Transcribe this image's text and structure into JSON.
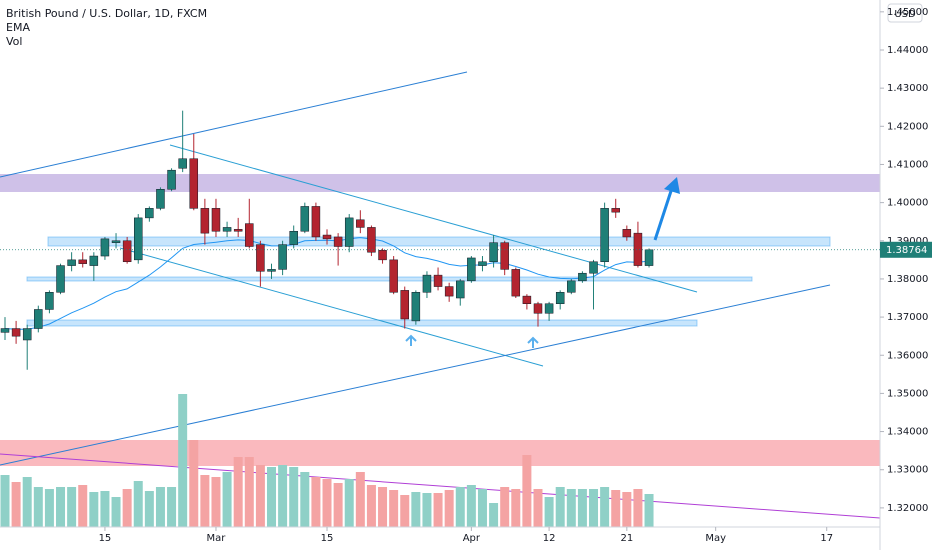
{
  "chart_data": {
    "type": "candlestick",
    "title": "British Pound / U.S. Dollar, 1D, FXCM",
    "indicators": [
      "EMA",
      "Vol"
    ],
    "currency": "USD",
    "last_price": 1.38764,
    "up_color": "#1f7f77",
    "down_color": "#b3242f",
    "volume_up_color": "#8fd0c7",
    "volume_down_color": "#f4a3a3",
    "ema_color": "#2196f3",
    "open": [
      1.366,
      1.367,
      1.364,
      1.367,
      1.372,
      1.3765,
      1.3835,
      1.385,
      1.3835,
      1.386,
      1.3895,
      1.39,
      1.385,
      1.396,
      1.3985,
      1.4035,
      1.409,
      1.4115,
      1.3985,
      1.3985,
      1.3925,
      1.393,
      1.3945,
      1.389,
      1.382,
      1.3825,
      1.389,
      1.3925,
      1.399,
      1.3915,
      1.391,
      1.3885,
      1.3955,
      1.3935,
      1.3875,
      1.385,
      1.377,
      1.369,
      1.3765,
      1.381,
      1.378,
      1.375,
      1.3795,
      1.3835,
      1.3845,
      1.3895,
      1.3825,
      1.3755,
      1.3735,
      1.371,
      1.3735,
      1.3765,
      1.3795,
      1.3815,
      1.3845,
      1.3985,
      1.393,
      1.392,
      1.3835
    ],
    "high": [
      1.37,
      1.369,
      1.368,
      1.373,
      1.377,
      1.384,
      1.387,
      1.387,
      1.387,
      1.391,
      1.392,
      1.391,
      1.397,
      1.399,
      1.404,
      1.409,
      1.4241,
      1.418,
      1.401,
      1.401,
      1.395,
      1.396,
      1.401,
      1.39,
      1.384,
      1.39,
      1.394,
      1.4,
      1.4,
      1.393,
      1.392,
      1.397,
      1.398,
      1.394,
      1.388,
      1.386,
      1.378,
      1.377,
      1.382,
      1.383,
      1.379,
      1.38,
      1.386,
      1.386,
      1.3915,
      1.39,
      1.383,
      1.376,
      1.374,
      1.374,
      1.377,
      1.38,
      1.382,
      1.385,
      1.4,
      1.401,
      1.394,
      1.395,
      1.388
    ],
    "low": [
      1.364,
      1.363,
      1.3562,
      1.366,
      1.371,
      1.376,
      1.382,
      1.383,
      1.3795,
      1.385,
      1.388,
      1.384,
      1.384,
      1.395,
      1.398,
      1.403,
      1.408,
      1.398,
      1.389,
      1.391,
      1.391,
      1.391,
      1.388,
      1.378,
      1.38,
      1.381,
      1.388,
      1.392,
      1.39,
      1.389,
      1.3835,
      1.387,
      1.392,
      1.386,
      1.384,
      1.376,
      1.367,
      1.368,
      1.375,
      1.377,
      1.374,
      1.373,
      1.379,
      1.382,
      1.383,
      1.381,
      1.375,
      1.372,
      1.3675,
      1.369,
      1.372,
      1.376,
      1.379,
      1.372,
      1.383,
      1.396,
      1.39,
      1.383,
      1.383
    ],
    "close": [
      1.367,
      1.365,
      1.367,
      1.372,
      1.3765,
      1.3835,
      1.385,
      1.384,
      1.386,
      1.3905,
      1.39,
      1.3845,
      1.396,
      1.3985,
      1.4035,
      1.4085,
      1.4115,
      1.3985,
      1.392,
      1.3925,
      1.3935,
      1.3925,
      1.3885,
      1.382,
      1.3825,
      1.389,
      1.3925,
      1.399,
      1.391,
      1.3905,
      1.3885,
      1.396,
      1.3935,
      1.387,
      1.385,
      1.3765,
      1.3695,
      1.3765,
      1.381,
      1.378,
      1.3755,
      1.3795,
      1.3855,
      1.3845,
      1.3895,
      1.3825,
      1.3755,
      1.3735,
      1.371,
      1.3735,
      1.3765,
      1.3795,
      1.3815,
      1.3845,
      1.3985,
      1.3975,
      1.391,
      1.3835,
      1.38764
    ],
    "volume": [
      52,
      45,
      50,
      40,
      38,
      40,
      40,
      42,
      35,
      36,
      30,
      38,
      46,
      36,
      40,
      40,
      133,
      87,
      52,
      50,
      55,
      70,
      70,
      62,
      60,
      62,
      60,
      55,
      50,
      48,
      44,
      48,
      55,
      42,
      40,
      37,
      32,
      35,
      34,
      34,
      37,
      40,
      42,
      38,
      24,
      40,
      38,
      72,
      38,
      30,
      40,
      38,
      38,
      38,
      40,
      37,
      35,
      38,
      33
    ],
    "xlim": [
      -0.45,
      78.8
    ],
    "xticks": [
      {
        "value": 9,
        "label": "15"
      },
      {
        "value": 19,
        "label": "Mar"
      },
      {
        "value": 29,
        "label": "15"
      },
      {
        "value": 42,
        "label": "Apr"
      },
      {
        "value": 49,
        "label": "12"
      },
      {
        "value": 56,
        "label": "21"
      },
      {
        "value": 64,
        "label": "May"
      },
      {
        "value": 74,
        "label": "17"
      }
    ],
    "ylim": [
      1.3163,
      1.4531
    ],
    "yticks": [
      {
        "value": 1.32,
        "label": "1.32000"
      },
      {
        "value": 1.33,
        "label": "1.33000"
      },
      {
        "value": 1.34,
        "label": "1.34000"
      },
      {
        "value": 1.35,
        "label": "1.35000"
      },
      {
        "value": 1.36,
        "label": "1.36000"
      },
      {
        "value": 1.37,
        "label": "1.37000"
      },
      {
        "value": 1.38,
        "label": "1.38000"
      },
      {
        "value": 1.39,
        "label": "1.39000"
      },
      {
        "value": 1.4,
        "label": "1.40000"
      },
      {
        "value": 1.41,
        "label": "1.41000"
      },
      {
        "value": 1.42,
        "label": "1.42000"
      },
      {
        "value": 1.43,
        "label": "1.43000"
      },
      {
        "value": 1.44,
        "label": "1.44000"
      },
      {
        "value": 1.45,
        "label": "1.45000"
      }
    ]
  }
}
